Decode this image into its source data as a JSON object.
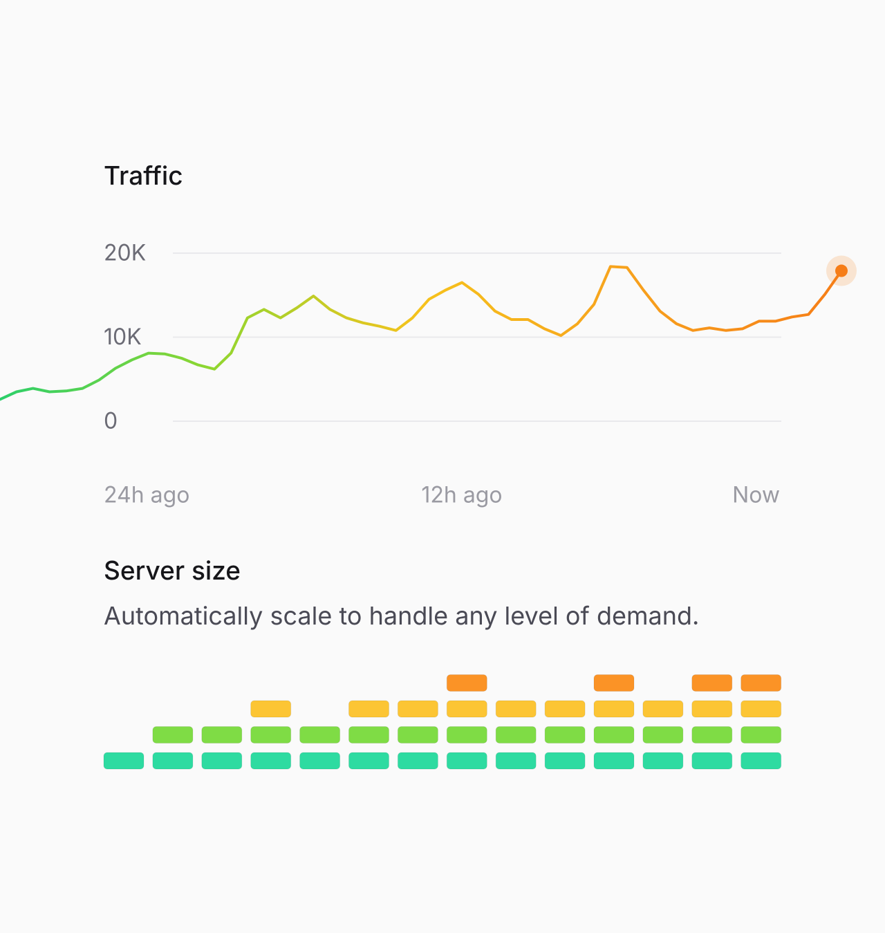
{
  "chart_data": [
    {
      "type": "line",
      "title": "Traffic",
      "values": [
        2600,
        3500,
        3900,
        3500,
        3600,
        3900,
        4900,
        6300,
        7300,
        8100,
        8000,
        7500,
        6700,
        6200,
        8100,
        12300,
        13300,
        12300,
        13500,
        14900,
        13300,
        12300,
        11700,
        11300,
        10800,
        12300,
        14500,
        15600,
        16500,
        15100,
        13100,
        12100,
        12100,
        11000,
        10200,
        11600,
        13900,
        18400,
        18300,
        15600,
        13100,
        11600,
        10800,
        11100,
        10800,
        11000,
        11900,
        11900,
        12400,
        12700,
        15100,
        17900
      ],
      "xlabels": [
        "24h ago",
        "12h ago",
        "Now"
      ],
      "ylim": [
        0,
        20000
      ],
      "yticks": [
        0,
        {
          "value": 10000,
          "label": "10K"
        },
        {
          "value": 20000,
          "label": "20K"
        }
      ],
      "grid": true,
      "colors": [
        "#2ccf6a",
        "#8fd630",
        "#f6c21c",
        "#f7a11d",
        "#f67d17"
      ]
    },
    {
      "type": "blocks",
      "title": "Server size",
      "subtitle": "Automatically scale to handle any level of demand.",
      "values": [
        1,
        2,
        2,
        3,
        2,
        3,
        3,
        4,
        3,
        3,
        4,
        3,
        4,
        4
      ],
      "level_colors": [
        "#2edba1",
        "#7fdc45",
        "#fcc534",
        "#fb9326"
      ]
    }
  ]
}
